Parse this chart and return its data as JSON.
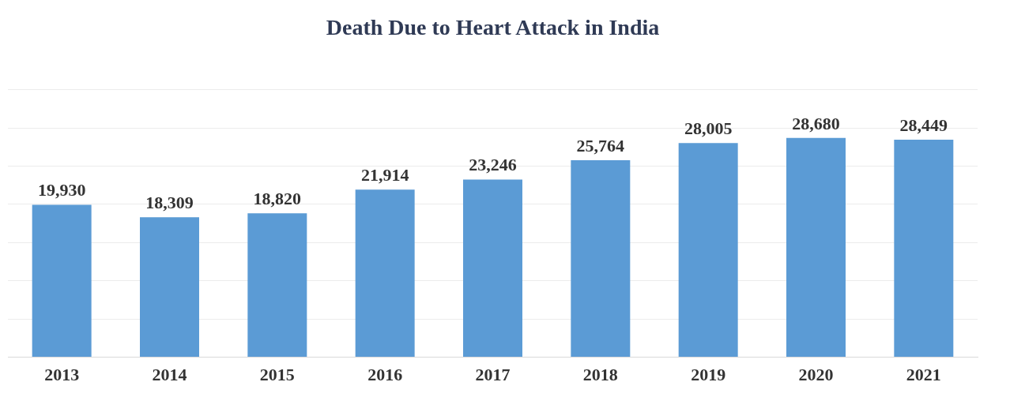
{
  "chart_data": {
    "type": "bar",
    "title": "Death Due to Heart Attack in India",
    "categories": [
      "2013",
      "2014",
      "2015",
      "2016",
      "2017",
      "2018",
      "2019",
      "2020",
      "2021"
    ],
    "values": [
      19930,
      18309,
      18820,
      21914,
      23246,
      25764,
      28005,
      28680,
      28449
    ],
    "color": "#5b9bd5",
    "value_labels": [
      "19,930",
      "18,309",
      "18,820",
      "21,914",
      "23,246",
      "25,764",
      "28,005",
      "28,680",
      "28,449"
    ],
    "ylim": [
      0,
      35000
    ],
    "yticks": [
      0,
      5000,
      10000,
      15000,
      20000,
      25000,
      30000,
      35000
    ],
    "grid": "y",
    "tick_labels": "x",
    "legend": false
  }
}
